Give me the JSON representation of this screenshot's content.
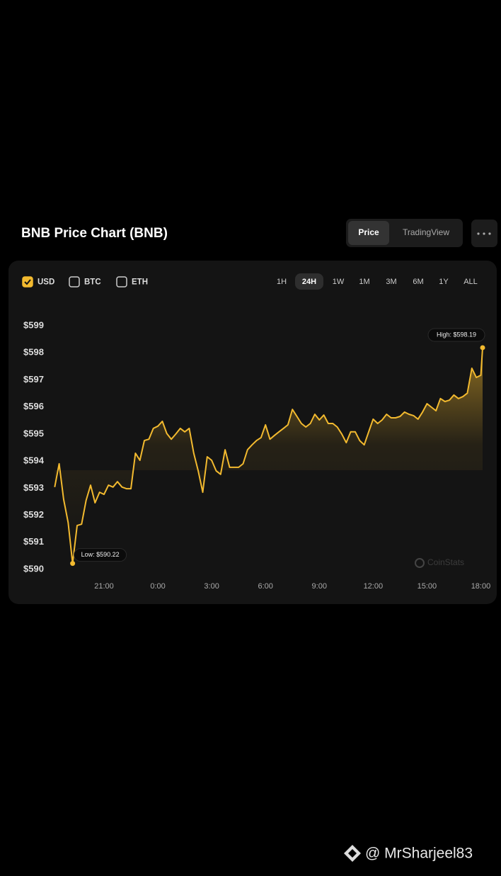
{
  "header": {
    "title": "BNB Price Chart (BNB)",
    "tabs": [
      "Price",
      "TradingView"
    ],
    "active_tab": 0
  },
  "currencies": [
    {
      "label": "USD",
      "checked": true
    },
    {
      "label": "BTC",
      "checked": false
    },
    {
      "label": "ETH",
      "checked": false
    }
  ],
  "ranges": [
    "1H",
    "24H",
    "1W",
    "1M",
    "3M",
    "6M",
    "1Y",
    "ALL"
  ],
  "active_range": 1,
  "watermark": "CoinStats",
  "footer": "@ MrSharjeel83",
  "chart_data": {
    "type": "line",
    "color": "#f3ba2f",
    "x": [
      18.25,
      18.5,
      18.75,
      19,
      19.25,
      19.5,
      19.75,
      20,
      20.25,
      20.5,
      20.75,
      21,
      21.25,
      21.5,
      21.75,
      22,
      22.25,
      22.5,
      22.75,
      23,
      23.25,
      23.5,
      23.75,
      24,
      24.25,
      24.5,
      24.75,
      25,
      25.25,
      25.5,
      25.75,
      26,
      26.25,
      26.5,
      26.75,
      27,
      27.25,
      27.5,
      27.75,
      28,
      28.25,
      28.5,
      28.75,
      29,
      29.25,
      29.5,
      29.75,
      30,
      30.25,
      30.5,
      30.75,
      31,
      31.25,
      31.5,
      31.75,
      32,
      32.25,
      32.5,
      32.75,
      33,
      33.25,
      33.5,
      33.75,
      34,
      34.25,
      34.5,
      34.75,
      35,
      35.25,
      35.5,
      35.75,
      36,
      36.25,
      36.5,
      36.75,
      37,
      37.25,
      37.5,
      37.75,
      38,
      38.25,
      38.5,
      38.75,
      39,
      39.25,
      39.5,
      39.75,
      40,
      40.25,
      40.5,
      40.75,
      41,
      41.25,
      41.5,
      41.75,
      42,
      42.1
    ],
    "values": [
      593.04,
      593.9,
      592.59,
      591.73,
      590.22,
      591.62,
      591.67,
      592.54,
      593.11,
      592.46,
      592.85,
      592.77,
      593.11,
      593.04,
      593.24,
      593.04,
      592.98,
      592.98,
      594.29,
      594.03,
      594.76,
      594.81,
      595.21,
      595.29,
      595.47,
      595.02,
      594.81,
      595.0,
      595.21,
      595.08,
      595.21,
      594.29,
      593.64,
      592.85,
      594.16,
      594.03,
      593.64,
      593.51,
      594.42,
      593.77,
      593.77,
      593.77,
      593.9,
      594.42,
      594.6,
      594.76,
      594.87,
      595.34,
      594.81,
      594.95,
      595.08,
      595.21,
      595.34,
      595.91,
      595.65,
      595.39,
      595.26,
      595.39,
      595.73,
      595.52,
      595.7,
      595.39,
      595.39,
      595.26,
      595.0,
      594.68,
      595.08,
      595.08,
      594.76,
      594.6,
      595.08,
      595.55,
      595.39,
      595.52,
      595.73,
      595.6,
      595.6,
      595.65,
      595.81,
      595.73,
      595.68,
      595.55,
      595.81,
      596.12,
      595.99,
      595.86,
      596.31,
      596.2,
      596.25,
      596.44,
      596.31,
      596.38,
      596.51,
      597.43,
      597.09,
      597.17,
      598.19
    ],
    "xlim": [
      18.2,
      42.1
    ],
    "xticks": [
      {
        "value": 21,
        "label": "21:00"
      },
      {
        "value": 24,
        "label": "0:00"
      },
      {
        "value": 27,
        "label": "3:00"
      },
      {
        "value": 30,
        "label": "6:00"
      },
      {
        "value": 33,
        "label": "9:00"
      },
      {
        "value": 36,
        "label": "12:00"
      },
      {
        "value": 39,
        "label": "15:00"
      },
      {
        "value": 42,
        "label": "18:00"
      }
    ],
    "ylim": [
      590,
      599
    ],
    "yticks": [
      {
        "value": 590,
        "label": "$590"
      },
      {
        "value": 591,
        "label": "$591"
      },
      {
        "value": 592,
        "label": "$592"
      },
      {
        "value": 593,
        "label": "$593"
      },
      {
        "value": 594,
        "label": "$594"
      },
      {
        "value": 595,
        "label": "$595"
      },
      {
        "value": 596,
        "label": "$596"
      },
      {
        "value": 597,
        "label": "$597"
      },
      {
        "value": 598,
        "label": "$598"
      },
      {
        "value": 599,
        "label": "$599"
      }
    ],
    "low_label": "Low: $590.22",
    "high_label": "High: $598.19"
  }
}
